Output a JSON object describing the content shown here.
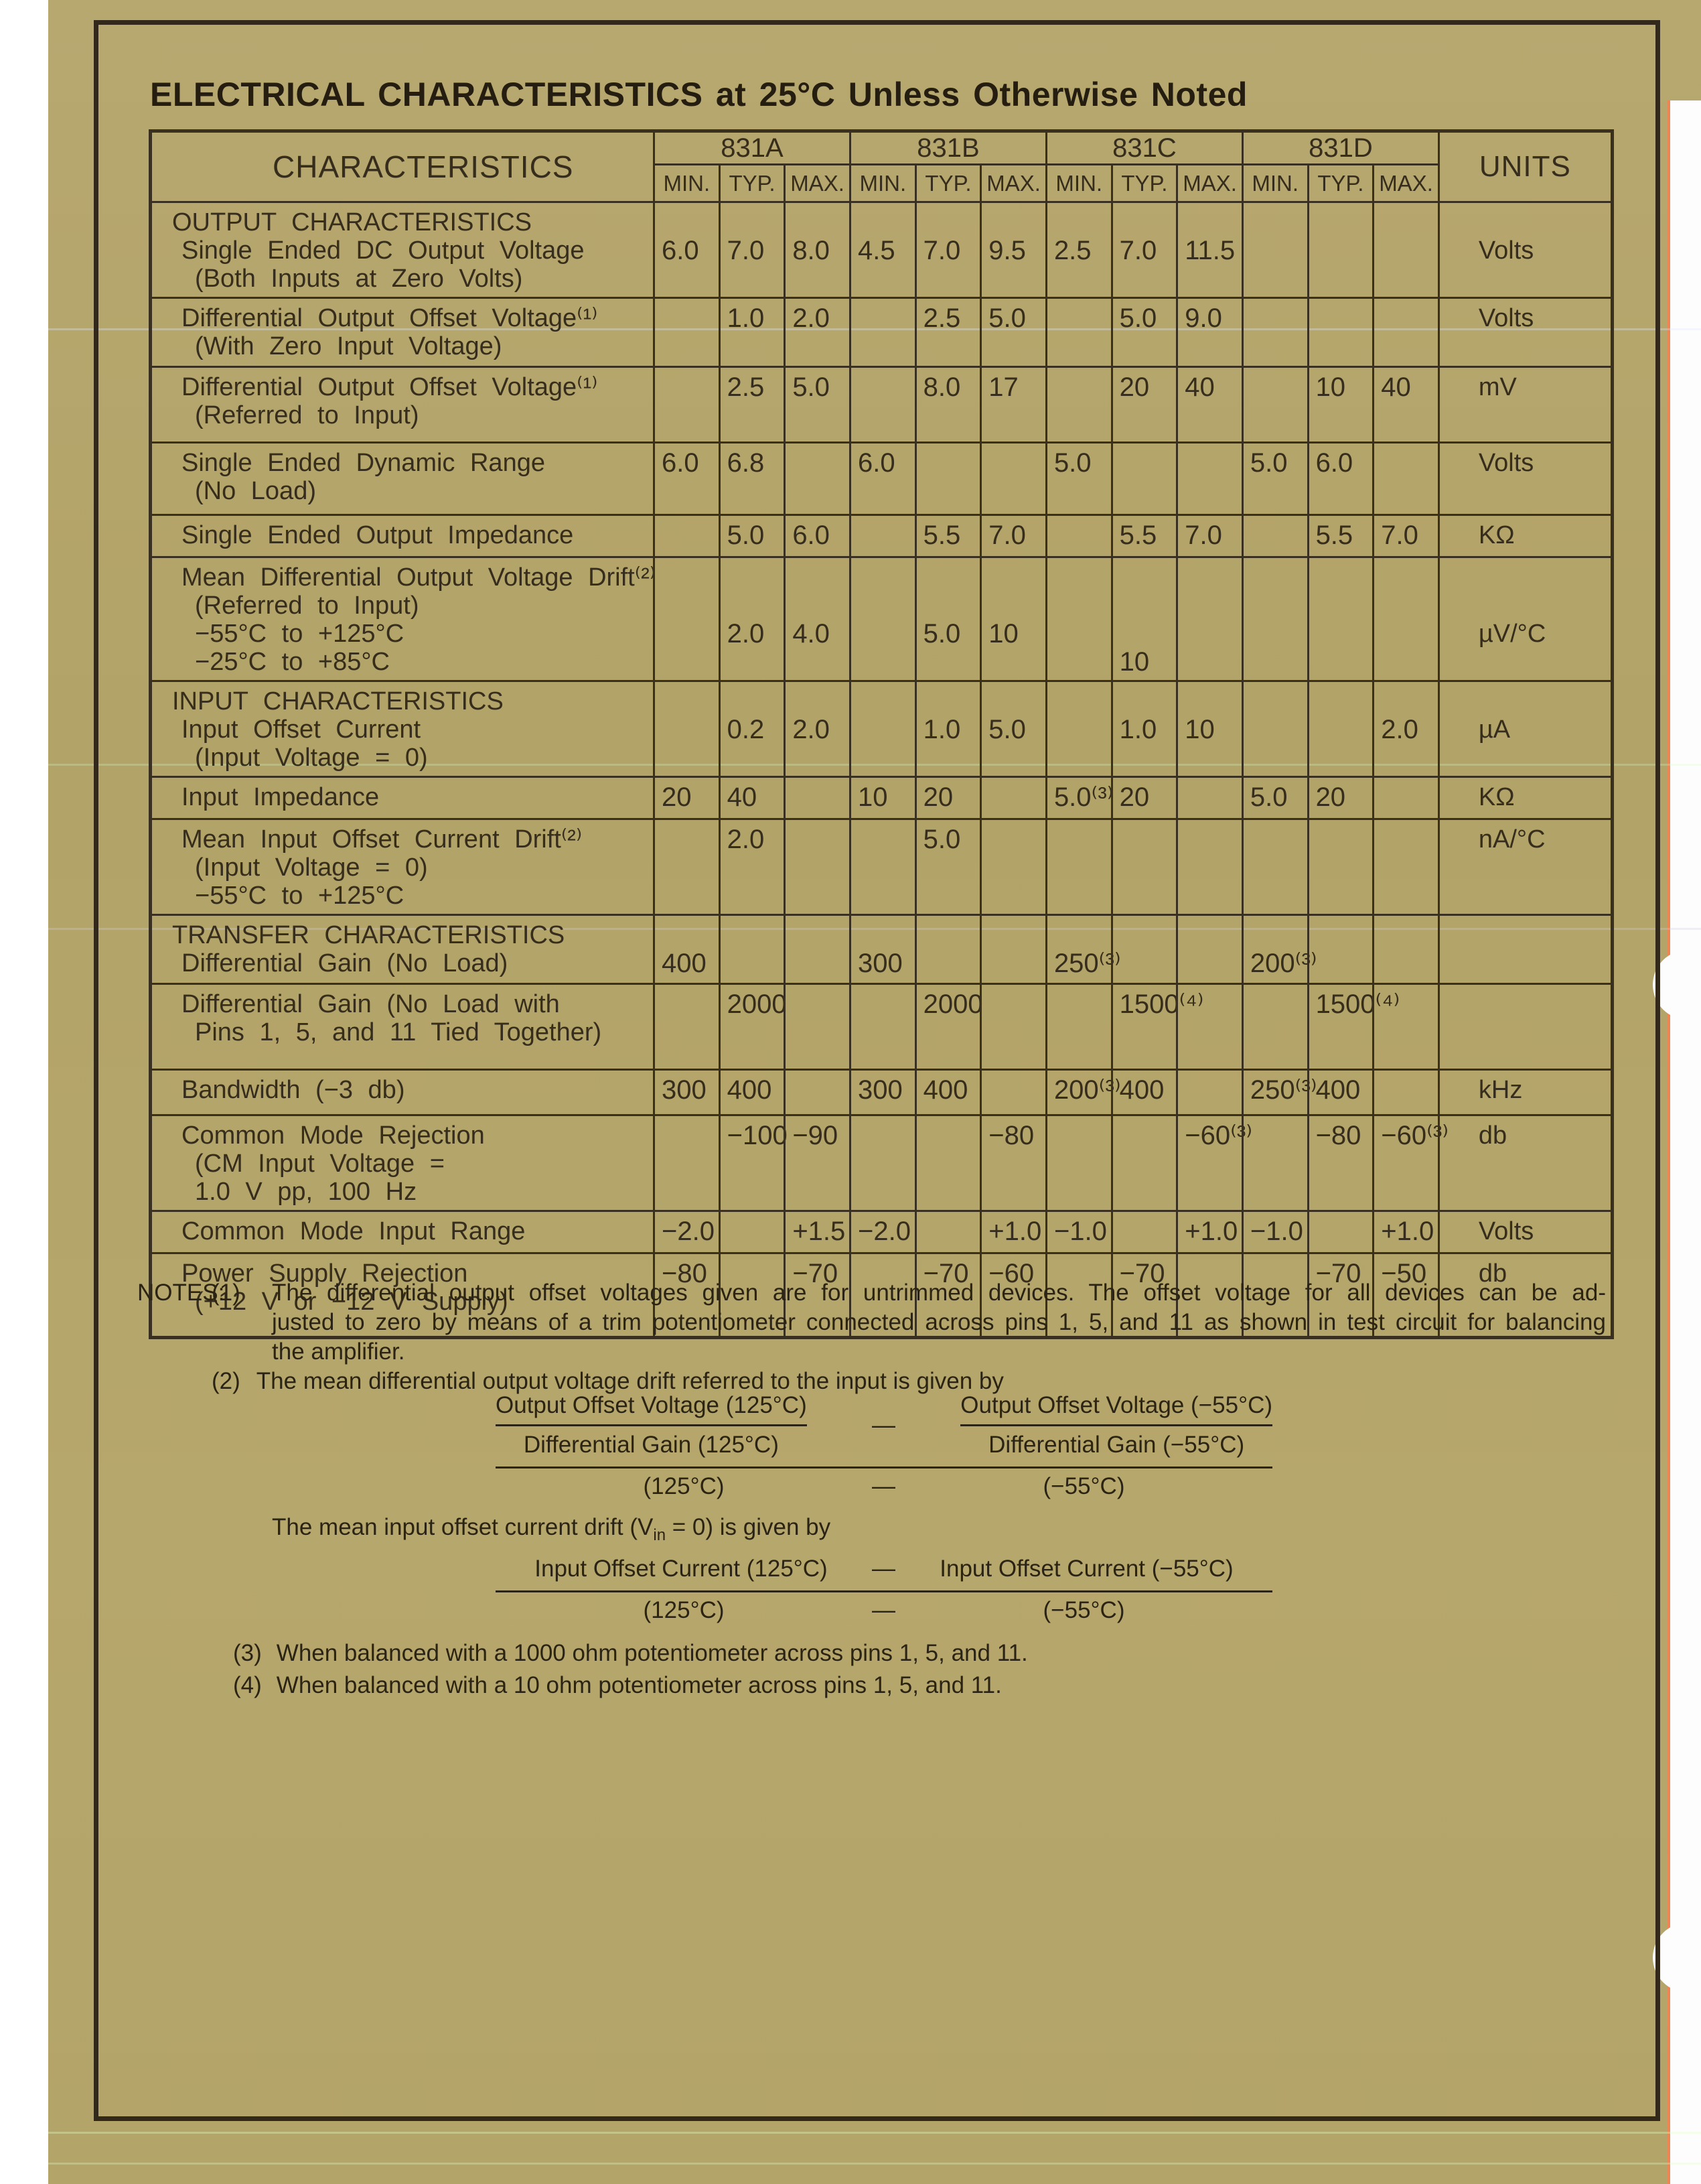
{
  "title": "ELECTRICAL CHARACTERISTICS at 25°C Unless Otherwise Noted",
  "table": {
    "characteristics_header": "CHARACTERISTICS",
    "units_header": "UNITS",
    "device_columns": [
      "831A",
      "831B",
      "831C",
      "831D"
    ],
    "limit_headers": [
      "MIN.",
      "TYP.",
      "MAX."
    ],
    "rows": [
      {
        "section": "OUTPUT CHARACTERISTICS",
        "lines": [
          "Single Ended DC Output Voltage",
          "(Both Inputs at Zero Volts)"
        ],
        "values": [
          "6.0",
          "7.0",
          "8.0",
          "4.5",
          "7.0",
          "9.5",
          "2.5",
          "7.0",
          "11.5",
          "",
          "",
          ""
        ],
        "units": "Volts"
      },
      {
        "lines": [
          "Differential Output Offset Voltage⁽¹⁾",
          "(With Zero Input Voltage)"
        ],
        "values": [
          "",
          "1.0",
          "2.0",
          "",
          "2.5",
          "5.0",
          "",
          "5.0",
          "9.0",
          "",
          "",
          ""
        ],
        "units": "Volts"
      },
      {
        "lines": [
          "Differential Output Offset Voltage⁽¹⁾",
          "(Referred to Input)"
        ],
        "values": [
          "",
          "2.5",
          "5.0",
          "",
          "8.0",
          "17",
          "",
          "20",
          "40",
          "",
          "10",
          "40"
        ],
        "units": "mV"
      },
      {
        "lines": [
          "Single Ended Dynamic Range",
          "(No Load)"
        ],
        "values": [
          "6.0",
          "6.8",
          "",
          "6.0",
          "",
          "",
          "5.0",
          "",
          "",
          "5.0",
          "6.0",
          ""
        ],
        "units": "Volts"
      },
      {
        "lines": [
          "Single Ended Output Impedance"
        ],
        "values": [
          "",
          "5.0",
          "6.0",
          "",
          "5.5",
          "7.0",
          "",
          "5.5",
          "7.0",
          "",
          "5.5",
          "7.0"
        ],
        "units": "KΩ"
      },
      {
        "lines": [
          "Mean Differential Output Voltage Drift⁽²⁾",
          "(Referred to Input)",
          "−55°C to +125°C",
          "−25°C to +85°C"
        ],
        "values": [
          "",
          "2.0",
          "4.0",
          "",
          "5.0",
          "10",
          "",
          "",
          "",
          "",
          "",
          ""
        ],
        "values2": [
          "",
          "",
          "",
          "",
          "",
          "",
          "",
          "10",
          "",
          "",
          "",
          ""
        ],
        "units": "µV/°C"
      },
      {
        "section": "INPUT CHARACTERISTICS",
        "lines": [
          "Input Offset Current",
          "(Input Voltage = 0)"
        ],
        "values": [
          "",
          "0.2",
          "2.0",
          "",
          "1.0",
          "5.0",
          "",
          "1.0",
          "10",
          "",
          "",
          "2.0"
        ],
        "units": "µA"
      },
      {
        "lines": [
          "Input Impedance"
        ],
        "values": [
          "20",
          "40",
          "",
          "10",
          "20",
          "",
          "5.0⁽³⁾",
          "20",
          "",
          "5.0",
          "20",
          ""
        ],
        "units": "KΩ"
      },
      {
        "lines": [
          "Mean Input Offset Current Drift⁽²⁾",
          "(Input Voltage = 0)",
          "−55°C to +125°C"
        ],
        "values": [
          "",
          "2.0",
          "",
          "",
          "5.0",
          "",
          "",
          "",
          "",
          "",
          "",
          ""
        ],
        "units": "nA/°C"
      },
      {
        "section": "TRANSFER CHARACTERISTICS",
        "lines": [
          "Differential Gain (No Load)"
        ],
        "values": [
          "400",
          "",
          "",
          "300",
          "",
          "",
          "250⁽³⁾",
          "",
          "",
          "200⁽³⁾",
          "",
          ""
        ],
        "units": ""
      },
      {
        "lines": [
          "Differential Gain (No Load with",
          "Pins 1, 5, and 11 Tied Together)"
        ],
        "values": [
          "",
          "2000",
          "",
          "",
          "2000",
          "",
          "",
          "1500⁽⁴⁾",
          "",
          "",
          "1500⁽⁴⁾",
          ""
        ],
        "units": ""
      },
      {
        "lines": [
          "Bandwidth (−3 db)"
        ],
        "values": [
          "300",
          "400",
          "",
          "300",
          "400",
          "",
          "200⁽³⁾",
          "400",
          "",
          "250⁽³⁾",
          "400",
          ""
        ],
        "units": "kHz"
      },
      {
        "lines": [
          "Common Mode Rejection",
          "(CM Input Voltage =",
          "1.0 V pp, 100 Hz"
        ],
        "values": [
          "",
          "−100",
          "−90",
          "",
          "",
          "−80",
          "",
          "",
          "−60⁽³⁾",
          "",
          "−80",
          "−60⁽³⁾"
        ],
        "units": "db"
      },
      {
        "lines": [
          "Common Mode Input Range"
        ],
        "values": [
          "−2.0",
          "",
          "+1.5",
          "−2.0",
          "",
          "+1.0",
          "−1.0",
          "",
          "+1.0",
          "−1.0",
          "",
          "+1.0"
        ],
        "units": "Volts"
      },
      {
        "lines": [
          "Power Supply Rejection",
          "(+12 V or −12 V Supply)"
        ],
        "values": [
          "−80",
          "",
          "−70",
          "",
          "−70",
          "−60",
          "",
          "−70",
          "",
          "",
          "−70",
          "−50"
        ],
        "units": "db"
      }
    ]
  },
  "notes": {
    "label": "NOTES:",
    "note1_num": "(1)",
    "note1_lines": [
      "The differential output offset voltages given are for untrimmed devices. The offset voltage for all devices can be ad-",
      "justed to zero by means of a trim potentiometer connected across pins 1, 5, and 11 as shown in test circuit for balancing",
      "the amplifier."
    ],
    "note2_num": "(2)",
    "note2_text": "The mean differential output voltage drift referred to the input is given by",
    "drift_intro_pre": "The mean input offset current drift (V",
    "drift_intro_sub": "in",
    "drift_intro_post": " = 0) is given by",
    "note3_num": "(3)",
    "note3_text": "When balanced with a 1000 ohm potentiometer across pins 1, 5, and 11.",
    "note4_num": "(4)",
    "note4_text": "When balanced with a 10 ohm potentiometer across pins 1, 5, and 11.",
    "formula1": {
      "num_left_top": "Output Offset Voltage (125°C)",
      "num_left_bot": "Differential Gain (125°C)",
      "minus": "—",
      "num_right_top": "Output Offset Voltage (−55°C)",
      "num_right_bot": "Differential Gain (−55°C)",
      "den_left": "(125°C)",
      "den_mid": "—",
      "den_right": "(−55°C)"
    },
    "formula2": {
      "num_left": "Input Offset Current (125°C)",
      "minus": "—",
      "num_right": "Input Offset Current (−55°C)",
      "den_left": "(125°C)",
      "den_mid": "—",
      "den_right": "(−55°C)"
    }
  }
}
